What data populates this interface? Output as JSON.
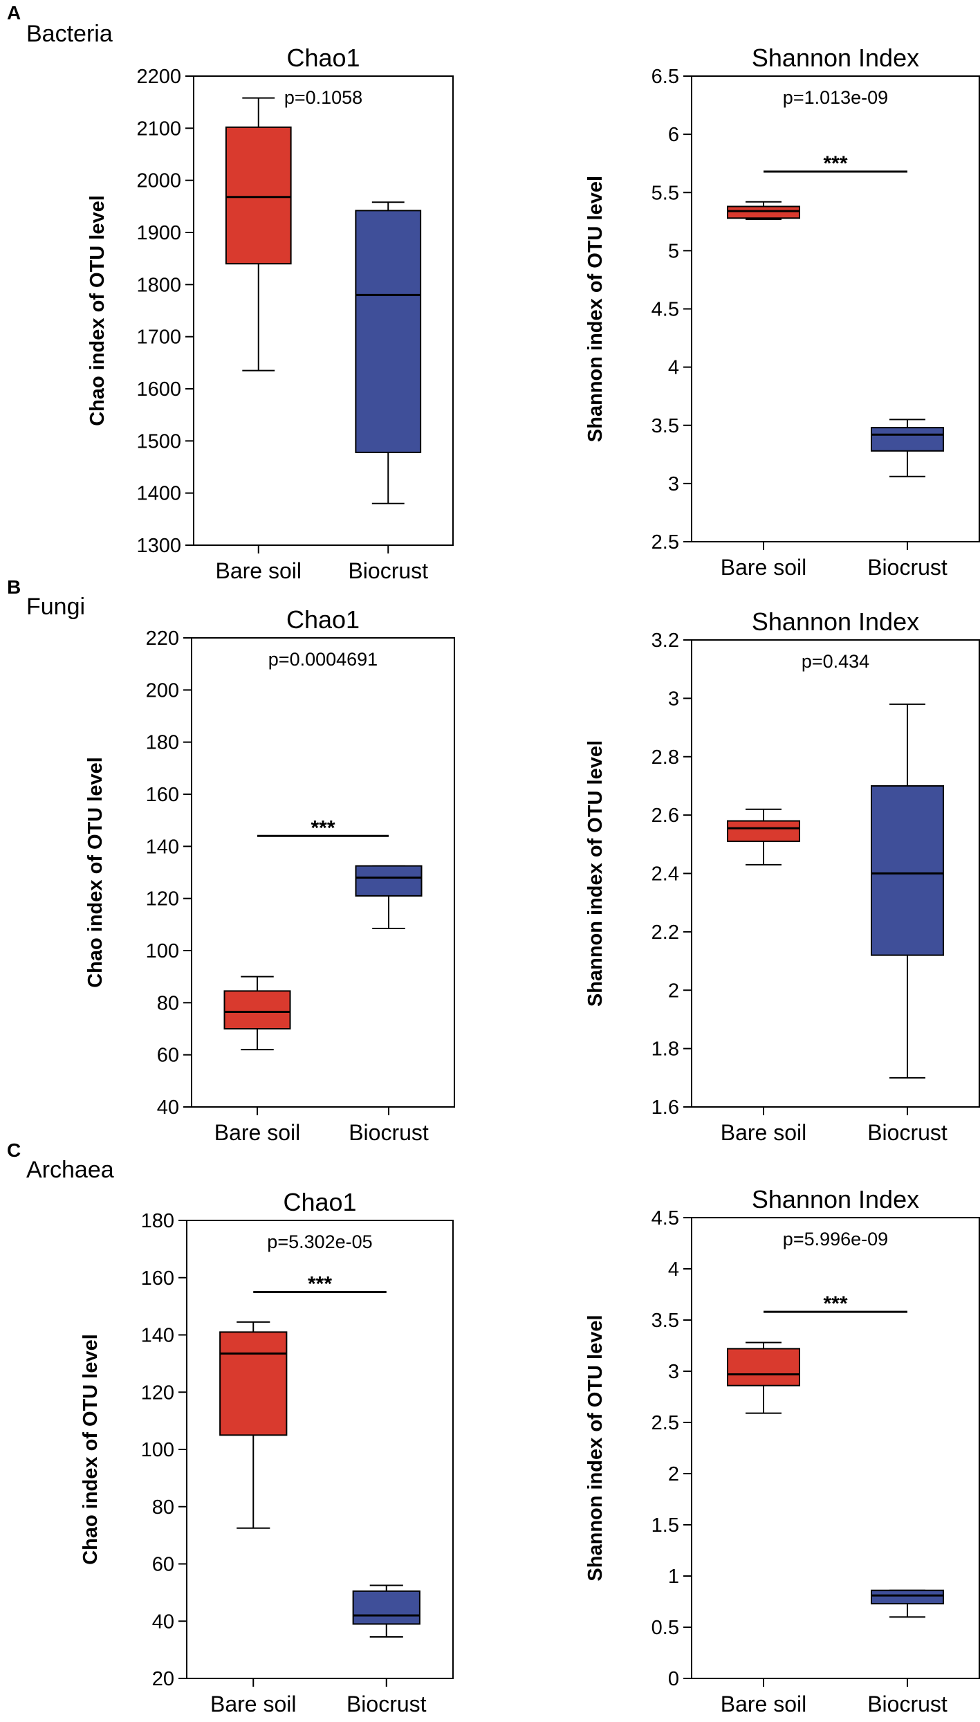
{
  "colors": {
    "bare_soil": "#d93a2e",
    "biocrust": "#3f4f99",
    "line": "#000000"
  },
  "panels": [
    {
      "letter": "A",
      "label": "Bacteria"
    },
    {
      "letter": "B",
      "label": "Fungi"
    },
    {
      "letter": "C",
      "label": "Archaea"
    }
  ],
  "chart_data": [
    {
      "type": "box",
      "panel": "A",
      "group": "Bacteria",
      "title": "Chao1",
      "p_value": "p=0.1058",
      "significance": "",
      "ylabel": "Chao index of OTU level",
      "ylim": [
        1300,
        2200
      ],
      "yticks": [
        1300,
        1400,
        1500,
        1600,
        1700,
        1800,
        1900,
        2000,
        2100,
        2200
      ],
      "ytick_labels": [
        "1300",
        "1400",
        "1500",
        "1600",
        "1700",
        "1800",
        "1900",
        "2000",
        "2100",
        "2200"
      ],
      "categories": [
        "Bare soil",
        "Biocrust"
      ],
      "boxes": [
        {
          "whisker_low": 1635,
          "q1": 1840,
          "median": 1968,
          "q3": 2102,
          "whisker_high": 2158
        },
        {
          "whisker_low": 1380,
          "q1": 1478,
          "median": 1780,
          "q3": 1942,
          "whisker_high": 1958
        }
      ]
    },
    {
      "type": "box",
      "panel": "A",
      "group": "Bacteria",
      "title": "Shannon Index",
      "p_value": "p=1.013e-09",
      "significance": "***",
      "sig_y": 5.68,
      "ylabel": "Shannon index of OTU level",
      "ylim": [
        2.5,
        6.5
      ],
      "yticks": [
        2.5,
        3,
        3.5,
        4,
        4.5,
        5,
        5.5,
        6,
        6.5
      ],
      "ytick_labels": [
        "2.5",
        "3",
        "3.5",
        "4",
        "4.5",
        "5",
        "5.5",
        "6",
        "6.5"
      ],
      "categories": [
        "Bare soil",
        "Biocrust"
      ],
      "boxes": [
        {
          "whisker_low": 5.27,
          "q1": 5.28,
          "median": 5.34,
          "q3": 5.38,
          "whisker_high": 5.42
        },
        {
          "whisker_low": 3.06,
          "q1": 3.28,
          "median": 3.42,
          "q3": 3.48,
          "whisker_high": 3.55
        }
      ]
    },
    {
      "type": "box",
      "panel": "B",
      "group": "Fungi",
      "title": "Chao1",
      "p_value": "p=0.0004691",
      "significance": "***",
      "sig_y": 144,
      "ylabel": "Chao index of OTU level",
      "ylim": [
        40,
        220
      ],
      "yticks": [
        40,
        60,
        80,
        100,
        120,
        140,
        160,
        180,
        200,
        220
      ],
      "ytick_labels": [
        "40",
        "60",
        "80",
        "100",
        "120",
        "140",
        "160",
        "180",
        "200",
        "220"
      ],
      "categories": [
        "Bare soil",
        "Biocrust"
      ],
      "boxes": [
        {
          "whisker_low": 62,
          "q1": 70,
          "median": 76.5,
          "q3": 84.5,
          "whisker_high": 90
        },
        {
          "whisker_low": 108.5,
          "q1": 121,
          "median": 128,
          "q3": 132.5,
          "whisker_high": 132.5
        }
      ]
    },
    {
      "type": "box",
      "panel": "B",
      "group": "Fungi",
      "title": "Shannon Index",
      "p_value": "p=0.434",
      "significance": "",
      "ylabel": "Shannon index of OTU level",
      "ylim": [
        1.6,
        3.2
      ],
      "yticks": [
        1.6,
        1.8,
        2,
        2.2,
        2.4,
        2.6,
        2.8,
        3,
        3.2
      ],
      "ytick_labels": [
        "1.6",
        "1.8",
        "2",
        "2.2",
        "2.4",
        "2.6",
        "2.8",
        "3",
        "3.2"
      ],
      "categories": [
        "Bare soil",
        "Biocrust"
      ],
      "boxes": [
        {
          "whisker_low": 2.43,
          "q1": 2.51,
          "median": 2.555,
          "q3": 2.58,
          "whisker_high": 2.62
        },
        {
          "whisker_low": 1.7,
          "q1": 2.12,
          "median": 2.4,
          "q3": 2.7,
          "whisker_high": 2.98
        }
      ]
    },
    {
      "type": "box",
      "panel": "C",
      "group": "Archaea",
      "title": "Chao1",
      "p_value": "p=5.302e-05",
      "significance": "***",
      "sig_y": 155,
      "ylabel": "Chao index of OTU level",
      "ylim": [
        20,
        180
      ],
      "yticks": [
        20,
        40,
        60,
        80,
        100,
        120,
        140,
        160,
        180
      ],
      "ytick_labels": [
        "20",
        "40",
        "60",
        "80",
        "100",
        "120",
        "140",
        "160",
        "180"
      ],
      "categories": [
        "Bare soil",
        "Biocrust"
      ],
      "boxes": [
        {
          "whisker_low": 72.5,
          "q1": 105,
          "median": 133.5,
          "q3": 141,
          "whisker_high": 144.5
        },
        {
          "whisker_low": 34.5,
          "q1": 39,
          "median": 42,
          "q3": 50.5,
          "whisker_high": 52.5
        }
      ]
    },
    {
      "type": "box",
      "panel": "C",
      "group": "Archaea",
      "title": "Shannon Index",
      "p_value": "p=5.996e-09",
      "significance": "***",
      "sig_y": 3.58,
      "ylabel": "Shannon index of OTU level",
      "ylim": [
        0,
        4.5
      ],
      "yticks": [
        0,
        0.5,
        1,
        1.5,
        2,
        2.5,
        3,
        3.5,
        4,
        4.5
      ],
      "ytick_labels": [
        "0",
        "0.5",
        "1",
        "1.5",
        "2",
        "2.5",
        "3",
        "3.5",
        "4",
        "4.5"
      ],
      "categories": [
        "Bare soil",
        "Biocrust"
      ],
      "boxes": [
        {
          "whisker_low": 2.59,
          "q1": 2.86,
          "median": 2.97,
          "q3": 3.22,
          "whisker_high": 3.28
        },
        {
          "whisker_low": 0.6,
          "q1": 0.73,
          "median": 0.81,
          "q3": 0.86,
          "whisker_high": 0.86
        }
      ]
    }
  ]
}
